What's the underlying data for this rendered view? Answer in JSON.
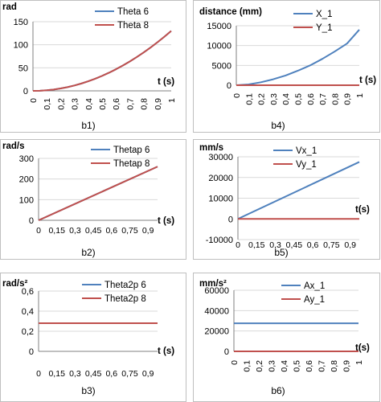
{
  "colors": {
    "blue": "#4f81bd",
    "red": "#c0504d",
    "grid": "#d9d9d9",
    "axis": "#808080",
    "frame": "#bfbfbf"
  },
  "chart_data": [
    {
      "id": "b1",
      "caption": "b1)",
      "type": "line",
      "ylabel": "rad",
      "xlabel": "t (s)",
      "ylim": [
        0,
        150
      ],
      "yticks": [
        0,
        50,
        100,
        150
      ],
      "xticks": [
        "0",
        "0,1",
        "0,2",
        "0,3",
        "0,4",
        "0,5",
        "0,6",
        "0,7",
        "0,8",
        "0,9",
        "1"
      ],
      "xlim": [
        0,
        1.0
      ],
      "xtick_rotate": true,
      "legend": "top-right",
      "series": [
        {
          "name": "Theta 6",
          "color": "blue",
          "x": [
            0,
            0.05,
            0.1,
            0.15,
            0.2,
            0.25,
            0.3,
            0.35,
            0.4,
            0.45,
            0.5,
            0.55,
            0.6,
            0.65,
            0.7,
            0.75,
            0.8,
            0.85,
            0.9,
            0.95,
            1.0
          ],
          "y": [
            0,
            0.3,
            1.3,
            2.9,
            5.2,
            8.1,
            11.7,
            15.9,
            20.8,
            26.3,
            32.5,
            39.3,
            46.8,
            54.9,
            63.7,
            73.1,
            83.2,
            93.9,
            105.3,
            117.3,
            130
          ]
        },
        {
          "name": "Theta 8",
          "color": "red",
          "x": [
            0,
            0.05,
            0.1,
            0.15,
            0.2,
            0.25,
            0.3,
            0.35,
            0.4,
            0.45,
            0.5,
            0.55,
            0.6,
            0.65,
            0.7,
            0.75,
            0.8,
            0.85,
            0.9,
            0.95,
            1.0
          ],
          "y": [
            0,
            0.3,
            1.3,
            2.9,
            5.2,
            8.1,
            11.7,
            15.9,
            20.8,
            26.3,
            32.5,
            39.3,
            46.8,
            54.9,
            63.7,
            73.1,
            83.2,
            93.9,
            105.3,
            117.3,
            130
          ]
        }
      ]
    },
    {
      "id": "b4",
      "caption": "b4)",
      "type": "line",
      "ylabel": "distance  (mm)",
      "xlabel": "t (s)",
      "ylim": [
        0,
        15000
      ],
      "yticks": [
        0,
        5000,
        10000,
        15000
      ],
      "xticks": [
        "0",
        "0,1",
        "0,2",
        "0,3",
        "0,4",
        "0,5",
        "0,6",
        "0,7",
        "0,8",
        "0,9",
        "1"
      ],
      "xlim": [
        0,
        1.0
      ],
      "xtick_rotate": true,
      "legend": "top-right",
      "series": [
        {
          "name": "X_1",
          "color": "blue",
          "x": [
            0,
            0.1,
            0.2,
            0.3,
            0.4,
            0.5,
            0.6,
            0.7,
            0.8,
            0.9,
            1.0
          ],
          "y": [
            0,
            200,
            750,
            1500,
            2450,
            3650,
            5000,
            6650,
            8500,
            10500,
            14000
          ]
        },
        {
          "name": "Y_1",
          "color": "red",
          "x": [
            0,
            1.0
          ],
          "y": [
            0,
            0
          ]
        }
      ]
    },
    {
      "id": "b2",
      "caption": "b2)",
      "type": "line",
      "ylabel": "rad/s",
      "xlabel": "t (s)",
      "ylim": [
        0,
        300
      ],
      "yticks": [
        0,
        100,
        200,
        300
      ],
      "xticks": [
        "0",
        "0,15",
        "0,3",
        "0,45",
        "0,6",
        "0,75",
        "0,9"
      ],
      "xlim": [
        0,
        1.0
      ],
      "xtick_rotate": false,
      "legend": "top-right",
      "series": [
        {
          "name": "Thetap 6",
          "color": "blue",
          "x": [
            0,
            1.0
          ],
          "y": [
            0,
            260
          ]
        },
        {
          "name": "Thetap 8",
          "color": "red",
          "x": [
            0,
            1.0
          ],
          "y": [
            0,
            260
          ]
        }
      ]
    },
    {
      "id": "b5",
      "caption": "b5)",
      "type": "line",
      "ylabel": "mm/s",
      "xlabel": "t(s)",
      "ylim": [
        -10000,
        30000
      ],
      "yticks": [
        -10000,
        0,
        10000,
        20000,
        30000
      ],
      "xticks": [
        "0",
        "0,15",
        "0,3",
        "0,45",
        "0,6",
        "0,75",
        "0,9"
      ],
      "xlim": [
        0,
        1.0
      ],
      "xtick_rotate": false,
      "legend": "top-right",
      "series": [
        {
          "name": "Vx_1",
          "color": "blue",
          "x": [
            0,
            1.0
          ],
          "y": [
            0,
            27500
          ]
        },
        {
          "name": "Vy_1",
          "color": "red",
          "x": [
            0,
            1.0
          ],
          "y": [
            0,
            0
          ]
        }
      ]
    },
    {
      "id": "b3",
      "caption": "b3)",
      "type": "line",
      "ylabel": "rad/s²",
      "xlabel": "t (s)",
      "ylim": [
        0,
        0.6
      ],
      "yticks": [
        0,
        0.2,
        0.4,
        0.6
      ],
      "ytick_labels": [
        "0",
        "0,2",
        "0,4",
        "0,6"
      ],
      "xticks": [
        "0",
        "0,15",
        "0,3",
        "0,45",
        "0,6",
        "0,75",
        "0,9"
      ],
      "xlim": [
        0,
        1.0
      ],
      "xtick_rotate": false,
      "legend": "top-right",
      "series": [
        {
          "name": "Theta2p 6",
          "color": "blue",
          "x": [
            0,
            1.0
          ],
          "y": [
            0.28,
            0.28
          ]
        },
        {
          "name": "Theta2p 8",
          "color": "red",
          "x": [
            0,
            1.0
          ],
          "y": [
            0.28,
            0.28
          ]
        }
      ]
    },
    {
      "id": "b6",
      "caption": "b6)",
      "type": "line",
      "ylabel": "mm/s²",
      "xlabel": "t(s)",
      "ylim": [
        0,
        60000
      ],
      "yticks": [
        0,
        20000,
        40000,
        60000
      ],
      "xticks": [
        "0",
        "0,1",
        "0,2",
        "0,3",
        "0,4",
        "0,5",
        "0,6",
        "0,7",
        "0,8",
        "0,9",
        "1"
      ],
      "xlim": [
        0,
        1.0
      ],
      "xtick_rotate": true,
      "legend": "top-right",
      "series": [
        {
          "name": "Ax_1",
          "color": "blue",
          "x": [
            0,
            1.0
          ],
          "y": [
            27500,
            27500
          ]
        },
        {
          "name": "Ay_1",
          "color": "red",
          "x": [
            0,
            1.0
          ],
          "y": [
            0,
            0
          ]
        }
      ]
    }
  ]
}
